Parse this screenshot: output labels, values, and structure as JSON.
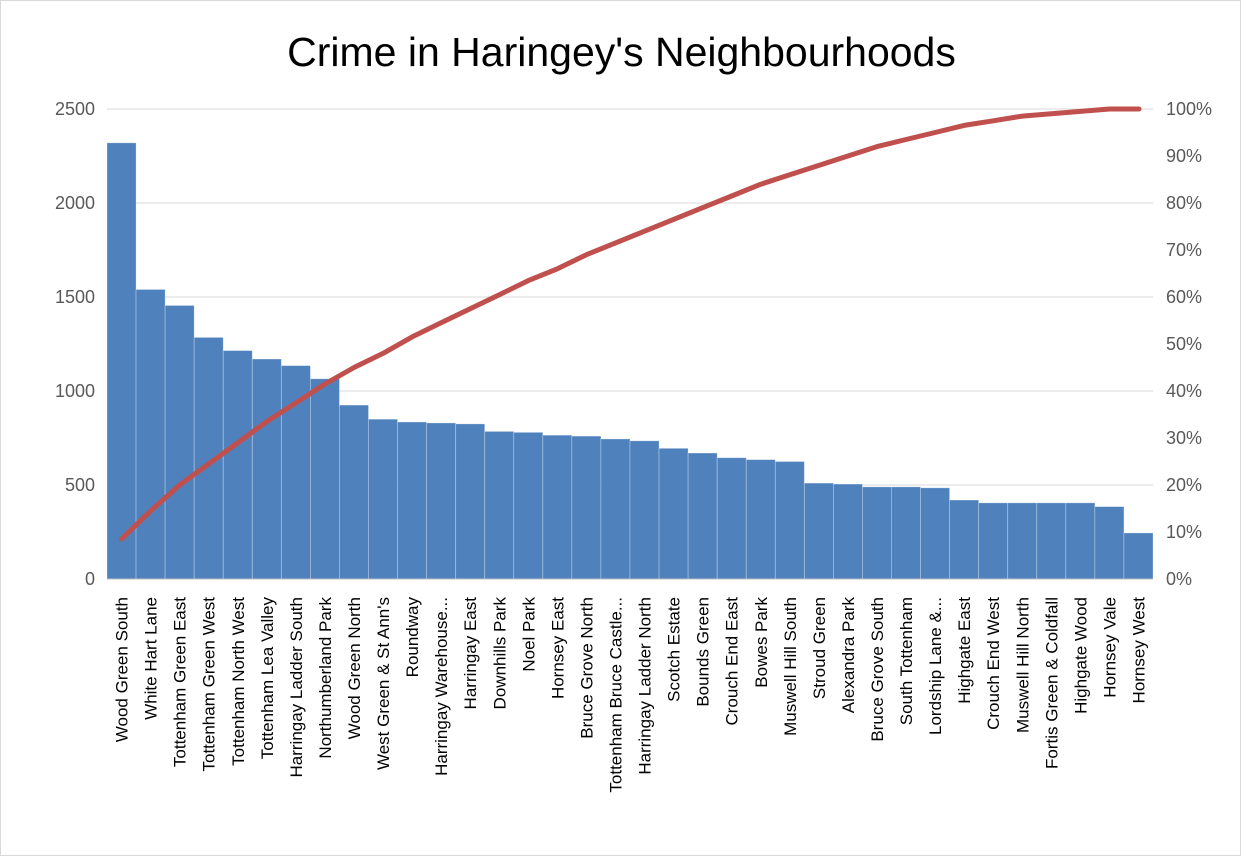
{
  "chart_data": {
    "type": "bar",
    "title": "Crime in Haringey's Neighbourhoods",
    "categories": [
      "Wood Green South",
      "White Hart Lane",
      "Tottenham Green East",
      "Tottenham Green West",
      "Tottenham North West",
      "Tottenham Lea Valley",
      "Harringay Ladder South",
      "Northumberland Park",
      "Wood Green North",
      "West Green & St Ann's",
      "Roundway",
      "Harringay Warehouse...",
      "Harringay East",
      "Downhills Park",
      "Noel Park",
      "Hornsey East",
      "Bruce Grove North",
      "Tottenham Bruce Castle...",
      "Harringay Ladder North",
      "Scotch Estate",
      "Bounds Green",
      "Crouch End East",
      "Bowes Park",
      "Muswell Hill South",
      "Stroud Green",
      "Alexandra Park",
      "Bruce Grove South",
      "South Tottenham",
      "Lordship Lane &...",
      "Highgate East",
      "Crouch End West",
      "Muswell Hill North",
      "Fortis Green & Coldfall",
      "Highgate Wood",
      "Hornsey Vale",
      "Hornsey West"
    ],
    "series": [
      {
        "type": "bar",
        "color": "#4f81bd",
        "values": [
          2320,
          1540,
          1455,
          1285,
          1215,
          1170,
          1135,
          1065,
          925,
          850,
          835,
          830,
          825,
          785,
          780,
          765,
          760,
          745,
          735,
          695,
          670,
          645,
          635,
          625,
          510,
          505,
          490,
          490,
          485,
          420,
          405,
          405,
          405,
          405,
          385,
          245
        ]
      },
      {
        "type": "line",
        "axis": "right",
        "color": "#c0504d",
        "values": [
          8.5,
          14.5,
          20.0,
          24.5,
          29.0,
          33.5,
          37.5,
          41.5,
          45.0,
          48.0,
          51.5,
          54.5,
          57.5,
          60.5,
          63.5,
          66.0,
          69.0,
          71.5,
          74.0,
          76.5,
          79.0,
          81.5,
          84.0,
          86.0,
          88.0,
          90.0,
          92.0,
          93.5,
          95.0,
          96.5,
          97.5,
          98.5,
          99.0,
          99.5,
          100.0,
          100.0
        ]
      }
    ],
    "ylim": [
      0,
      2500
    ],
    "yticks": [
      "0",
      "500",
      "1000",
      "1500",
      "2000",
      "2500"
    ],
    "y2lim": [
      0,
      100
    ],
    "y2ticks": [
      "0%",
      "10%",
      "20%",
      "30%",
      "40%",
      "50%",
      "60%",
      "70%",
      "80%",
      "90%",
      "100%"
    ],
    "grid": true,
    "legend": "none"
  }
}
